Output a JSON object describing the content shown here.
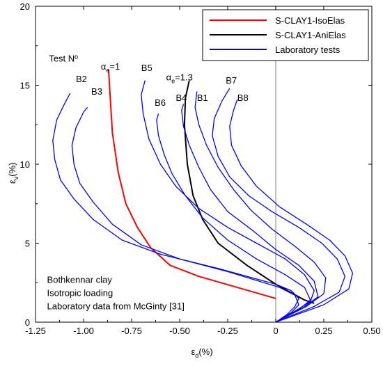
{
  "chart_data": {
    "type": "line",
    "xlabel": "ε",
    "xlabel_sub": "d",
    "xlabel_unit": "(%)",
    "ylabel": "ε",
    "ylabel_sub": "v",
    "ylabel_unit": "(%)",
    "xlim": [
      -1.25,
      0.5
    ],
    "ylim": [
      0,
      20
    ],
    "xticks": [
      -1.25,
      -1.0,
      -0.75,
      -0.5,
      -0.25,
      0,
      0.25,
      0.5
    ],
    "xtick_labels": [
      "-1.25",
      "-1.00",
      "-0.75",
      "-0.50",
      "-0.25",
      "0",
      "0.25",
      "0.50"
    ],
    "yticks": [
      0,
      5,
      10,
      15,
      20
    ],
    "ytick_labels": [
      "0",
      "5",
      "10",
      "15",
      "20"
    ],
    "legend": {
      "position": "top-right",
      "entries": [
        {
          "name": "S-CLAY1-IsoElas",
          "color": "#ff0000"
        },
        {
          "name": "S-CLAY1-AniElas",
          "color": "#000000"
        },
        {
          "name": "Laboratory tests",
          "color": "#0000ff"
        }
      ]
    },
    "annotations": {
      "test_header": "Test Nº",
      "alpha1": {
        "sym": "α",
        "sub": "e",
        "value": "=1"
      },
      "alpha13": {
        "sym": "α",
        "sub": "e",
        "value": "=1.3"
      },
      "note_lines": [
        "Bothkennar clay",
        "Isotropic loading",
        "Laboratory data from McGinty [31]"
      ]
    },
    "series": [
      {
        "name": "S-CLAY1-IsoElas",
        "color": "#ff0000",
        "points": [
          [
            0,
            1.5
          ],
          [
            -0.2,
            2.2
          ],
          [
            -0.4,
            2.9
          ],
          [
            -0.55,
            3.6
          ],
          [
            -0.65,
            4.7
          ],
          [
            -0.72,
            6.0
          ],
          [
            -0.78,
            7.5
          ],
          [
            -0.82,
            9.5
          ],
          [
            -0.85,
            12.0
          ],
          [
            -0.86,
            14.0
          ],
          [
            -0.87,
            16.0
          ]
        ]
      },
      {
        "name": "S-CLAY1-AniElas",
        "color": "#000000",
        "points": [
          [
            0.2,
            1.2
          ],
          [
            0.15,
            1.4
          ],
          [
            0.0,
            2.4
          ],
          [
            -0.15,
            3.6
          ],
          [
            -0.3,
            5.0
          ],
          [
            -0.38,
            6.5
          ],
          [
            -0.43,
            8.0
          ],
          [
            -0.46,
            10.0
          ],
          [
            -0.475,
            12.5
          ],
          [
            -0.47,
            14.2
          ],
          [
            -0.45,
            15.3
          ]
        ]
      },
      {
        "name": "B2",
        "label": "B2",
        "label_at": [
          -1.04,
          15.2
        ],
        "color": "#0000ff",
        "points": [
          [
            0,
            0
          ],
          [
            0.06,
            0.5
          ],
          [
            0.1,
            1.0
          ],
          [
            0.12,
            1.5
          ],
          [
            0.08,
            2.0
          ],
          [
            0.0,
            2.4
          ],
          [
            -0.3,
            3.4
          ],
          [
            -0.6,
            4.3
          ],
          [
            -0.8,
            5.2
          ],
          [
            -0.95,
            6.5
          ],
          [
            -1.05,
            7.8
          ],
          [
            -1.12,
            9.0
          ],
          [
            -1.15,
            10.3
          ],
          [
            -1.16,
            11.5
          ],
          [
            -1.14,
            12.8
          ],
          [
            -1.1,
            13.8
          ],
          [
            -1.07,
            14.5
          ]
        ]
      },
      {
        "name": "B3",
        "label": "B3",
        "label_at": [
          -0.96,
          14.4
        ],
        "color": "#0000ff",
        "points": [
          [
            0,
            0
          ],
          [
            0.08,
            0.6
          ],
          [
            0.12,
            1.1
          ],
          [
            0.1,
            1.7
          ],
          [
            0.02,
            2.2
          ],
          [
            -0.25,
            3.2
          ],
          [
            -0.5,
            4.0
          ],
          [
            -0.7,
            4.9
          ],
          [
            -0.85,
            6.2
          ],
          [
            -0.95,
            7.6
          ],
          [
            -1.02,
            8.8
          ],
          [
            -1.05,
            10.0
          ],
          [
            -1.06,
            11.2
          ],
          [
            -1.04,
            12.3
          ],
          [
            -1.0,
            13.3
          ],
          [
            -0.98,
            13.6
          ]
        ]
      },
      {
        "name": "B5",
        "label": "B5",
        "label_at": [
          -0.7,
          15.9
        ],
        "color": "#0000ff",
        "points": [
          [
            0,
            0
          ],
          [
            0.1,
            0.7
          ],
          [
            0.18,
            1.3
          ],
          [
            0.2,
            2.0
          ],
          [
            0.15,
            3.0
          ],
          [
            0.05,
            4.0
          ],
          [
            -0.1,
            5.0
          ],
          [
            -0.25,
            6.0
          ],
          [
            -0.4,
            7.2
          ],
          [
            -0.52,
            8.6
          ],
          [
            -0.6,
            10.0
          ],
          [
            -0.66,
            11.6
          ],
          [
            -0.69,
            13.2
          ],
          [
            -0.7,
            14.4
          ],
          [
            -0.68,
            15.3
          ]
        ]
      },
      {
        "name": "B6",
        "label": "B6",
        "label_at": [
          -0.63,
          13.7
        ],
        "color": "#0000ff",
        "points": [
          [
            0,
            0
          ],
          [
            0.12,
            0.8
          ],
          [
            0.18,
            1.4
          ],
          [
            0.15,
            2.2
          ],
          [
            0.05,
            3.0
          ],
          [
            -0.1,
            4.0
          ],
          [
            -0.25,
            5.2
          ],
          [
            -0.38,
            6.6
          ],
          [
            -0.47,
            8.0
          ],
          [
            -0.54,
            9.4
          ],
          [
            -0.58,
            10.6
          ],
          [
            -0.61,
            11.8
          ],
          [
            -0.62,
            12.8
          ],
          [
            -0.61,
            13.2
          ]
        ]
      },
      {
        "name": "B4",
        "label": "B4",
        "label_at": [
          -0.52,
          14.0
        ],
        "color": "#0000ff",
        "points": [
          [
            0,
            0
          ],
          [
            0.14,
            0.9
          ],
          [
            0.22,
            1.6
          ],
          [
            0.2,
            2.6
          ],
          [
            0.12,
            3.6
          ],
          [
            0.0,
            4.6
          ],
          [
            -0.12,
            5.8
          ],
          [
            -0.25,
            7.0
          ],
          [
            -0.34,
            8.4
          ],
          [
            -0.4,
            9.8
          ],
          [
            -0.45,
            11.2
          ],
          [
            -0.48,
            12.4
          ],
          [
            -0.49,
            13.4
          ],
          [
            -0.48,
            13.8
          ]
        ]
      },
      {
        "name": "B1",
        "label": "B1",
        "label_at": [
          -0.41,
          14.0
        ],
        "color": "#0000ff",
        "points": [
          [
            0,
            0
          ],
          [
            0.16,
            1.0
          ],
          [
            0.25,
            1.8
          ],
          [
            0.26,
            2.8
          ],
          [
            0.2,
            3.8
          ],
          [
            0.1,
            4.8
          ],
          [
            -0.02,
            5.9
          ],
          [
            -0.13,
            7.1
          ],
          [
            -0.22,
            8.4
          ],
          [
            -0.3,
            9.8
          ],
          [
            -0.36,
            11.2
          ],
          [
            -0.4,
            12.5
          ],
          [
            -0.42,
            13.6
          ],
          [
            -0.41,
            14.6
          ]
        ]
      },
      {
        "name": "B7",
        "label": "B7",
        "label_at": [
          -0.26,
          15.1
        ],
        "color": "#0000ff",
        "points": [
          [
            0,
            0
          ],
          [
            0.2,
            1.0
          ],
          [
            0.33,
            1.9
          ],
          [
            0.36,
            2.9
          ],
          [
            0.32,
            4.0
          ],
          [
            0.24,
            5.0
          ],
          [
            0.12,
            6.0
          ],
          [
            -0.02,
            7.0
          ],
          [
            -0.14,
            8.0
          ],
          [
            -0.24,
            9.2
          ],
          [
            -0.3,
            10.5
          ],
          [
            -0.33,
            11.8
          ],
          [
            -0.32,
            12.9
          ],
          [
            -0.28,
            14.0
          ],
          [
            -0.24,
            14.8
          ]
        ]
      },
      {
        "name": "B8",
        "label": "B8",
        "label_at": [
          -0.2,
          14.0
        ],
        "color": "#0000ff",
        "points": [
          [
            0,
            0
          ],
          [
            0.25,
            1.1
          ],
          [
            0.38,
            2.1
          ],
          [
            0.4,
            3.1
          ],
          [
            0.36,
            4.2
          ],
          [
            0.28,
            5.2
          ],
          [
            0.16,
            6.2
          ],
          [
            0.02,
            7.3
          ],
          [
            -0.1,
            8.6
          ],
          [
            -0.18,
            9.9
          ],
          [
            -0.23,
            11.2
          ],
          [
            -0.24,
            12.4
          ],
          [
            -0.22,
            13.4
          ],
          [
            -0.2,
            14.1
          ]
        ]
      }
    ]
  }
}
